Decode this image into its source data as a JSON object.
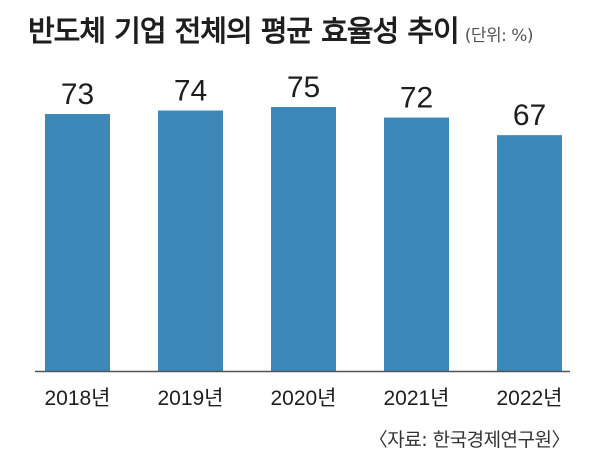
{
  "chart_data": {
    "type": "bar",
    "title": "반도체 기업 전체의 평균 효율성 추이",
    "unit_note": "(단위: %)",
    "categories": [
      "2018년",
      "2019년",
      "2020년",
      "2021년",
      "2022년"
    ],
    "values": [
      73,
      74,
      75,
      72,
      67
    ],
    "ylim": [
      0,
      75
    ],
    "bar_color": "#3c88b9",
    "axis_color": "#555555",
    "grid": false,
    "source": "〈자료: 한국경제연구원〉"
  }
}
